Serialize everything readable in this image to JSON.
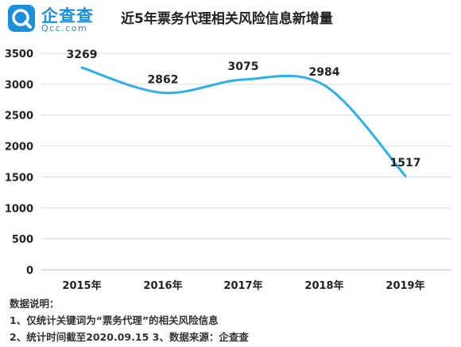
{
  "header": {
    "brand": "企查查",
    "brand_sub": "Qcc.com",
    "title": "近5年票务代理相关风险信息新增量"
  },
  "chart_data": {
    "type": "line",
    "categories": [
      "2015年",
      "2016年",
      "2017年",
      "2018年",
      "2019年"
    ],
    "series": [
      {
        "values": [
          3269,
          2862,
          3075,
          2984,
          1517
        ],
        "color": "#2cb0e6"
      }
    ],
    "ylim": [
      0,
      3500
    ],
    "yticks": [
      "0",
      "500",
      "1000",
      "1500",
      "2000",
      "2500",
      "3000",
      "3500"
    ],
    "data_labels": [
      "3269",
      "2862",
      "3075",
      "2984",
      "1517"
    ],
    "grid": true,
    "legend": "none"
  },
  "notes": {
    "heading": "数据说明：",
    "line1": "1、仅统计关键词为“票务代理”的相关风险信息",
    "line2": "2、统计时间截至2020.09.15   3、数据来源：企查查"
  }
}
